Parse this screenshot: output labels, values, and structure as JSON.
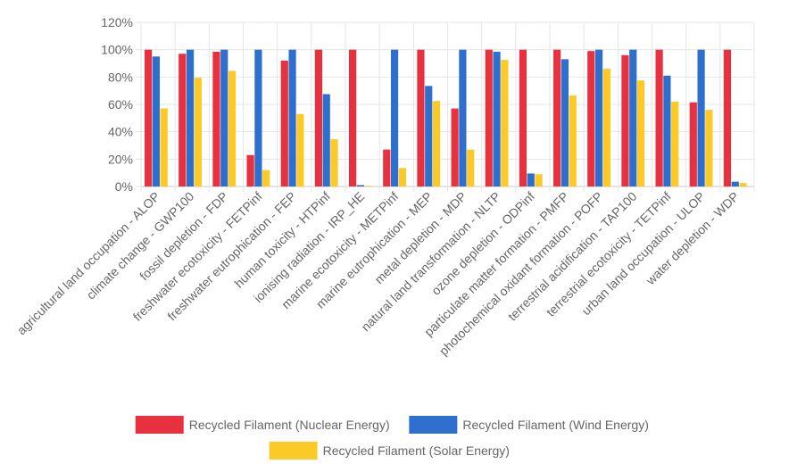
{
  "chart_data": {
    "type": "bar",
    "title": "",
    "xlabel": "",
    "ylabel": "",
    "ylim": [
      0,
      1.2
    ],
    "y_ticks": [
      "0%",
      "20%",
      "40%",
      "60%",
      "80%",
      "100%",
      "120%"
    ],
    "grid": true,
    "legend_position": "bottom",
    "categories": [
      "agricultural land occupation - ALOP",
      "climate change - GWP100",
      "fossil depletion - FDP",
      "freshwater ecotoxicity - FETPinf",
      "freshwater eutrophication - FEP",
      "human toxicity - HTPinf",
      "ionising radiation - IRP_HE",
      "marine ecotoxicity - METPinf",
      "marine eutrophication - MEP",
      "metal depletion - MDP",
      "natural land transformation - NLTP",
      "ozone depletion - ODPinf",
      "particulate matter formation - PMFP",
      "photochemical oxidant formation - POFP",
      "terrestrial acidification - TAP100",
      "terrestrial ecotoxicity - TETPinf",
      "urban land occupation - ULOP",
      "water depletion - WDP"
    ],
    "series": [
      {
        "name": "Recycled Filament (Nuclear Energy)",
        "color": "#e8313e",
        "values": [
          1.0,
          0.97,
          0.985,
          0.23,
          0.92,
          1.0,
          1.0,
          0.27,
          1.0,
          0.57,
          1.0,
          1.0,
          1.0,
          0.99,
          0.96,
          1.0,
          0.615,
          1.0
        ]
      },
      {
        "name": "Recycled Filament (Wind Energy)",
        "color": "#2e6fcd",
        "values": [
          0.95,
          1.0,
          1.0,
          1.0,
          1.0,
          0.675,
          0.01,
          1.0,
          0.735,
          1.0,
          0.985,
          0.095,
          0.93,
          1.0,
          1.0,
          0.81,
          1.0,
          0.035
        ]
      },
      {
        "name": "Recycled Filament (Solar Energy)",
        "color": "#fdc926",
        "values": [
          0.57,
          0.795,
          0.845,
          0.12,
          0.53,
          0.345,
          0.005,
          0.135,
          0.625,
          0.27,
          0.925,
          0.09,
          0.665,
          0.86,
          0.775,
          0.62,
          0.56,
          0.025
        ]
      }
    ]
  }
}
